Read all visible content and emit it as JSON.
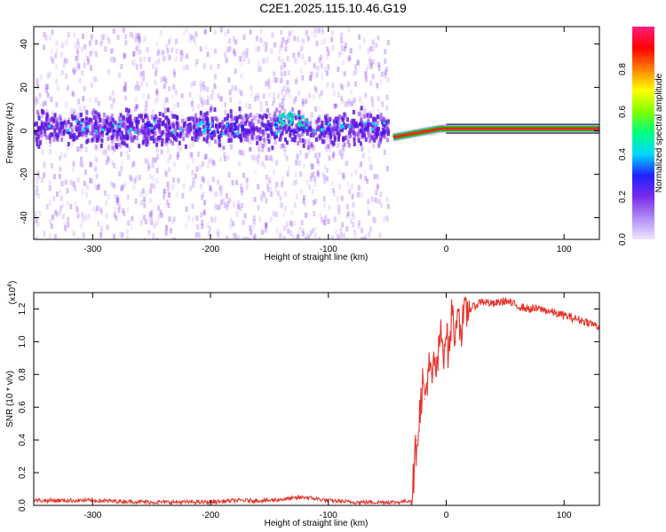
{
  "title": "C2E1.2025.115.10.46.G19",
  "colors": {
    "snr_line": "#e8332b",
    "noise_purple": "#8a3cf0",
    "band_purple": "#5a14d8"
  },
  "colorbar": {
    "label": "Normalized spectral amplitude",
    "ticks": [
      "0.0",
      "0.2",
      "0.4",
      "0.6",
      "0.8"
    ],
    "tick_values": [
      0.0,
      0.2,
      0.4,
      0.6,
      0.8
    ],
    "range": [
      0,
      1
    ],
    "colors": [
      "#f0e6ff",
      "#b08cf5",
      "#7b2be9",
      "#2020ff",
      "#00d8ff",
      "#00ff80",
      "#80ff00",
      "#ffff00",
      "#ff8000",
      "#ff0000",
      "#ff2080"
    ]
  },
  "chart_data": [
    {
      "type": "heatmap",
      "xlabel": "Height of straight line (km)",
      "ylabel": "Frequency (Hz)",
      "xlim": [
        -350,
        130
      ],
      "ylim": [
        -50,
        48
      ],
      "xticks": [
        -300,
        -200,
        -100,
        0,
        100
      ],
      "xtick_labels": [
        "-300",
        "-200",
        "-100",
        "0",
        "100"
      ],
      "yticks": [
        -40,
        -20,
        0,
        20,
        40
      ],
      "ytick_labels": [
        "-40",
        "-20",
        "0",
        "20",
        "40"
      ],
      "signal_band": {
        "x_range": [
          -350,
          -50
        ],
        "center_freq": 2,
        "half_width": 8
      },
      "tone": {
        "x_range": [
          -50,
          130
        ],
        "points": [
          [
            -45,
            -3
          ],
          [
            -35,
            -2
          ],
          [
            -25,
            -1
          ],
          [
            -15,
            0
          ],
          [
            -5,
            1
          ],
          [
            0,
            1
          ],
          [
            130,
            1
          ]
        ]
      },
      "noise_region": {
        "x_range": [
          -350,
          -50
        ],
        "y_range": [
          -50,
          48
        ]
      }
    },
    {
      "type": "line",
      "xlabel": "Height of straight line (km)",
      "ylabel": "SNR (10 * v/v)",
      "multiplier_label": "(x10",
      "multiplier_exp": "4",
      "xlim": [
        -350,
        130
      ],
      "ylim": [
        0,
        1.3
      ],
      "xticks": [
        -300,
        -200,
        -100,
        0,
        100
      ],
      "xtick_labels": [
        "-300",
        "-200",
        "-100",
        "0",
        "100"
      ],
      "yticks": [
        0.0,
        0.2,
        0.4,
        0.6,
        0.8,
        1.0,
        1.2
      ],
      "ytick_labels": [
        "0.0",
        "0.2",
        "0.4",
        "0.6",
        "0.8",
        "1.0",
        "1.2"
      ],
      "series": [
        {
          "x": [
            -350,
            -300,
            -250,
            -200,
            -180,
            -150,
            -120,
            -100,
            -80,
            -50,
            -40,
            -30,
            -28,
            -25,
            -22,
            -20,
            -18,
            -15,
            -12,
            -10,
            -8,
            -5,
            -2,
            0,
            2,
            5,
            8,
            10,
            12,
            15,
            20,
            25,
            30,
            40,
            50,
            60,
            70,
            80,
            90,
            100,
            110,
            120,
            130
          ],
          "y": [
            0.03,
            0.03,
            0.02,
            0.02,
            0.03,
            0.03,
            0.05,
            0.03,
            0.02,
            0.02,
            0.02,
            0.03,
            0.15,
            0.4,
            0.6,
            0.75,
            0.65,
            0.85,
            0.75,
            0.9,
            0.8,
            1.05,
            0.95,
            1.1,
            0.9,
            1.2,
            1.0,
            1.3,
            1.05,
            1.15,
            1.2,
            1.22,
            1.25,
            1.23,
            1.25,
            1.22,
            1.2,
            1.2,
            1.18,
            1.16,
            1.14,
            1.12,
            1.09
          ]
        }
      ]
    }
  ]
}
